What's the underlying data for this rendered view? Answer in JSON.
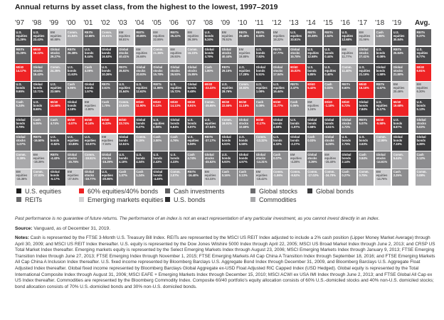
{
  "title": "Annual returns by asset class, from the highest to the lowest, 1997–2019",
  "avg_label": "Avg.",
  "chart_data": {
    "type": "table",
    "title": "Annual returns by asset class, from the highest to the lowest, 1997–2019",
    "years": [
      "'97",
      "'98",
      "'99",
      "'00",
      "'01",
      "'02",
      "'03",
      "'04",
      "'05",
      "'06",
      "'07",
      "'08",
      "'09",
      "'10",
      "'11",
      "'12",
      "'13",
      "'14",
      "'15",
      "'16",
      "'17",
      "'18",
      "'19"
    ],
    "columns": [
      [
        [
          "us_eq",
          "31.29%"
        ],
        [
          "reits",
          "31.29%"
        ],
        [
          "sixty40",
          "14.17%"
        ],
        [
          "us_bonds",
          "9.65%"
        ],
        [
          "cash",
          "5.24%"
        ],
        [
          "gl_bonds",
          "3.79%"
        ],
        [
          "gl_stocks",
          "-1.07%"
        ],
        [
          "comm",
          "-3.39%"
        ],
        [
          "em_eq",
          "-16.36%"
        ]
      ],
      [
        [
          "us_eq",
          "23.43%"
        ],
        [
          "sixty40",
          "16.22%"
        ],
        [
          "gl_stocks",
          "15.43%"
        ],
        [
          "gl_bonds",
          "13.71%"
        ],
        [
          "us_bonds",
          "8.69%"
        ],
        [
          "cash",
          "5.05%"
        ],
        [
          "reits",
          "-16.50%"
        ],
        [
          "em_eq",
          "-18.39%"
        ],
        [
          "comm",
          "-27.03%"
        ]
      ],
      [
        [
          "em_eq",
          "60.88%"
        ],
        [
          "gl_stocks",
          "29.27%"
        ],
        [
          "comm",
          "24.35%"
        ],
        [
          "us_eq",
          "23.56%"
        ],
        [
          "sixty40",
          "14.66%"
        ],
        [
          "cash",
          "4.74%"
        ],
        [
          "us_bonds",
          "-0.82%"
        ],
        [
          "reits",
          "-4.43%"
        ],
        [
          "gl_bonds",
          "-5.17%"
        ]
      ],
      [
        [
          "comm",
          "31.84%"
        ],
        [
          "reits",
          "26.38%"
        ],
        [
          "us_bonds",
          "11.63%"
        ],
        [
          "cash",
          "5.96%"
        ],
        [
          "gl_bonds",
          "3.18%"
        ],
        [
          "sixty40",
          "-4.07%"
        ],
        [
          "us_eq",
          "-10.89%"
        ],
        [
          "gl_stocks",
          "-15.76%"
        ],
        [
          "em_eq",
          "-27.94%"
        ]
      ],
      [
        [
          "reits",
          "12.65%"
        ],
        [
          "us_bonds",
          "8.44%"
        ],
        [
          "cash",
          "4.09%"
        ],
        [
          "gl_bonds",
          "1.57%"
        ],
        [
          "em_eq",
          "-2.80%"
        ],
        [
          "sixty40",
          "-6.14%"
        ],
        [
          "us_eq",
          "-10.97%"
        ],
        [
          "comm",
          "-19.51%"
        ],
        [
          "gl_stocks",
          "-19.77%"
        ]
      ],
      [
        [
          "comm",
          "25.91%"
        ],
        [
          "gl_bonds",
          "16.53%"
        ],
        [
          "us_bonds",
          "10.26%"
        ],
        [
          "reits",
          "3.61%"
        ],
        [
          "cash",
          "1.70%"
        ],
        [
          "sixty40",
          "-6.33%"
        ],
        [
          "em_eq",
          "-7.04%"
        ],
        [
          "gl_stocks",
          "-15.29%"
        ],
        [
          "us_eq",
          "-20.86%"
        ]
      ],
      [
        [
          "em_eq",
          "58.81%"
        ],
        [
          "gl_stocks",
          "40.41%"
        ],
        [
          "reits",
          "35.92%"
        ],
        [
          "us_eq",
          "31.64%"
        ],
        [
          "comm",
          "23.93%"
        ],
        [
          "sixty40",
          "23.74%"
        ],
        [
          "gl_bonds",
          "12.51%"
        ],
        [
          "us_bonds",
          "4.10%"
        ],
        [
          "cash",
          "1.07%"
        ]
      ],
      [
        [
          "reits",
          "30.85%"
        ],
        [
          "em_eq",
          "26.68%"
        ],
        [
          "gl_stocks",
          "20.93%"
        ],
        [
          "us_eq",
          "12.62%"
        ],
        [
          "sixty40",
          "11.90%"
        ],
        [
          "gl_bonds",
          "9.27%"
        ],
        [
          "comm",
          "9.15%"
        ],
        [
          "us_bonds",
          "4.34%"
        ],
        [
          "cash",
          "1.24%"
        ]
      ],
      [
        [
          "em_eq",
          "32.85%"
        ],
        [
          "comm",
          "21.36%"
        ],
        [
          "gl_stocks",
          "15.78%"
        ],
        [
          "reits",
          "11.96%"
        ],
        [
          "sixty40",
          "6.12%"
        ],
        [
          "us_eq",
          "6.08%"
        ],
        [
          "cash",
          "3.00%"
        ],
        [
          "us_bonds",
          "2.43%"
        ],
        [
          "gl_bonds",
          "-4.49%"
        ]
      ],
      [
        [
          "reits",
          "35.22%"
        ],
        [
          "em_eq",
          "29.93%"
        ],
        [
          "gl_stocks",
          "26.93%"
        ],
        [
          "us_eq",
          "15.72%"
        ],
        [
          "sixty40",
          "14.13%"
        ],
        [
          "gl_bonds",
          "6.64%"
        ],
        [
          "cash",
          "4.76%"
        ],
        [
          "us_bonds",
          "4.33%"
        ],
        [
          "comm",
          "2.07%"
        ]
      ],
      [
        [
          "em_eq",
          "39.39%"
        ],
        [
          "comm",
          "16.23%"
        ],
        [
          "gl_stocks",
          "15.85%"
        ],
        [
          "gl_bonds",
          "9.48%"
        ],
        [
          "sixty40",
          "8.91%"
        ],
        [
          "us_bonds",
          "6.97%"
        ],
        [
          "us_eq",
          "5.59%"
        ],
        [
          "cash",
          "4.74%"
        ],
        [
          "reits",
          "-16.40%"
        ]
      ],
      [
        [
          "us_bonds",
          "5.24%"
        ],
        [
          "gl_bonds",
          "4.79%"
        ],
        [
          "cash",
          "1.80%"
        ],
        [
          "sixty40",
          "-22.22%"
        ],
        [
          "comm",
          "-35.65%"
        ],
        [
          "us_eq",
          "-37.04%"
        ],
        [
          "reits",
          "-37.17%"
        ],
        [
          "gl_stocks",
          "-45.52%"
        ],
        [
          "em_eq",
          "-53.33%"
        ]
      ],
      [
        [
          "em_eq",
          "78.51%"
        ],
        [
          "gl_stocks",
          "40.44%"
        ],
        [
          "reits",
          "29.15%"
        ],
        [
          "us_eq",
          "28.76%"
        ],
        [
          "sixty40",
          "22.55%"
        ],
        [
          "comm",
          "18.91%"
        ],
        [
          "gl_bonds",
          "6.93%"
        ],
        [
          "us_bonds",
          "5.93%"
        ],
        [
          "cash",
          "0.16%"
        ]
      ],
      [
        [
          "reits",
          "28.48%"
        ],
        [
          "em_eq",
          "18.88%"
        ],
        [
          "us_eq",
          "17.28%"
        ],
        [
          "comm",
          "16.83%"
        ],
        [
          "sixty40",
          "11.18%"
        ],
        [
          "gl_stocks",
          "10.69%"
        ],
        [
          "us_bonds",
          "6.58%"
        ],
        [
          "gl_bonds",
          "4.57%"
        ],
        [
          "cash",
          "0.13%"
        ]
      ],
      [
        [
          "reits",
          "8.69%"
        ],
        [
          "us_bonds",
          "7.92%"
        ],
        [
          "gl_bonds",
          "5.51%"
        ],
        [
          "us_eq",
          "1.08%"
        ],
        [
          "cash",
          "0.08%"
        ],
        [
          "sixty40",
          "-0.17%"
        ],
        [
          "comm",
          "-13.32%"
        ],
        [
          "gl_stocks",
          "-14.31%"
        ],
        [
          "em_eq",
          "-18.42%"
        ]
      ],
      [
        [
          "em_eq",
          "18.22%"
        ],
        [
          "reits",
          "17.77%"
        ],
        [
          "gl_stocks",
          "17.04%"
        ],
        [
          "us_eq",
          "16.44%"
        ],
        [
          "sixty40",
          "11.77%"
        ],
        [
          "gl_bonds",
          "4.59%"
        ],
        [
          "us_bonds",
          "4.32%"
        ],
        [
          "cash",
          "0.07%"
        ],
        [
          "comm",
          "-1.06%"
        ]
      ],
      [
        [
          "us_eq",
          "33.51%"
        ],
        [
          "gl_stocks",
          "15.78%"
        ],
        [
          "sixty40",
          "15.02%"
        ],
        [
          "reits",
          "2.47%"
        ],
        [
          "cash",
          "0.05%"
        ],
        [
          "us_bonds",
          "-1.97%"
        ],
        [
          "gl_bonds",
          "-2.27%"
        ],
        [
          "em_eq",
          "-4.28%"
        ],
        [
          "comm",
          "-9.52%"
        ]
      ],
      [
        [
          "reits",
          "30.38%"
        ],
        [
          "us_eq",
          "12.58%"
        ],
        [
          "us_bonds",
          "5.85%"
        ],
        [
          "sixty40",
          "5.42%"
        ],
        [
          "em_eq",
          "1.24%"
        ],
        [
          "gl_bonds",
          "0.58%"
        ],
        [
          "cash",
          "0.03%"
        ],
        [
          "gl_stocks",
          "-3.39%"
        ],
        [
          "comm",
          "-17.02%"
        ]
      ],
      [
        [
          "reits",
          "2.52%"
        ],
        [
          "us_bonds",
          "0.44%"
        ],
        [
          "us_eq",
          "0.40%"
        ],
        [
          "cash",
          "0.03%"
        ],
        [
          "sixty40",
          "-1.18%"
        ],
        [
          "gl_bonds",
          "-3.51%"
        ],
        [
          "gl_stocks",
          "-4.29%"
        ],
        [
          "em_eq",
          "-15.40%"
        ],
        [
          "comm",
          "-24.70%"
        ]
      ],
      [
        [
          "us_eq",
          "12.68%"
        ],
        [
          "em_eq",
          "11.77%"
        ],
        [
          "comm",
          "11.40%"
        ],
        [
          "reits",
          "8.60%"
        ],
        [
          "sixty40",
          "6.72%"
        ],
        [
          "gl_stocks",
          "4.72%"
        ],
        [
          "us_bonds",
          "2.75%"
        ],
        [
          "gl_bonds",
          "2.14%"
        ],
        [
          "cash",
          "0.27%"
        ]
      ],
      [
        [
          "em_eq",
          "31.06%"
        ],
        [
          "gl_stocks",
          "27.41%"
        ],
        [
          "us_eq",
          "21.19%"
        ],
        [
          "sixty40",
          "16.16%"
        ],
        [
          "gl_bonds",
          "7.84%"
        ],
        [
          "reits",
          "5.07%"
        ],
        [
          "us_bonds",
          "3.63%"
        ],
        [
          "cash",
          "0.84%"
        ],
        [
          "comm",
          "0.75%"
        ]
      ],
      [
        [
          "cash",
          "1.86%"
        ],
        [
          "us_bonds",
          "-0.08%"
        ],
        [
          "gl_bonds",
          "-1.58%"
        ],
        [
          "reits",
          "-4.57%"
        ],
        [
          "us_eq",
          "-5.17%"
        ],
        [
          "sixty40",
          "-5.58%"
        ],
        [
          "comm",
          "-12.99%"
        ],
        [
          "gl_stocks",
          "-14.61%"
        ],
        [
          "em_eq",
          "-14.76%"
        ]
      ],
      [
        [
          "us_eq",
          "30.84%"
        ],
        [
          "reits",
          "25.84%"
        ],
        [
          "gl_stocks",
          "21.80%"
        ],
        [
          "em_eq",
          "20.46%"
        ],
        [
          "sixty40",
          "19.68%"
        ],
        [
          "us_bonds",
          "8.87%"
        ],
        [
          "gl_bonds",
          "7.19%"
        ],
        [
          "comm",
          "5.44%"
        ],
        [
          "cash",
          "2.25%"
        ]
      ]
    ],
    "average": [
      [
        "reits",
        "9.37%"
      ],
      [
        "us_eq",
        "8.77%"
      ],
      [
        "sixty40",
        "6.91%"
      ],
      [
        "em_eq",
        "6.30%"
      ],
      [
        "us_bonds",
        "5.13%"
      ],
      [
        "gl_stocks",
        "5.02%"
      ],
      [
        "gl_bonds",
        "4.36%"
      ],
      [
        "cash",
        "2.12%"
      ],
      [
        "comm",
        "0.08%"
      ]
    ],
    "asset_classes": {
      "us_eq": {
        "label": "U.S. equities",
        "cell_lines": [
          "U.S.",
          "equities"
        ],
        "color": "#4a4a4c"
      },
      "sixty40": {
        "label": "60% equities/40% bonds",
        "cell_lines": [
          "60/40"
        ],
        "color": "#ee2224"
      },
      "cash": {
        "label": "Cash investments",
        "cell_lines": [
          "Cash"
        ],
        "color": "#8d8d8f"
      },
      "gl_stocks": {
        "label": "Global stocks",
        "cell_lines": [
          "Global",
          "stocks"
        ],
        "color": "#747476"
      },
      "gl_bonds": {
        "label": "Global bonds",
        "cell_lines": [
          "Global",
          "bonds"
        ],
        "color": "#39393b"
      },
      "reits": {
        "label": "REITs",
        "cell_lines": [
          "REITs"
        ],
        "color": "#626264"
      },
      "em_eq": {
        "label": "Emerging markets equities",
        "cell_lines": [
          "EM",
          "equities"
        ],
        "color": "#cfcfd1"
      },
      "us_bonds": {
        "label": "U.S. bonds",
        "cell_lines": [
          "U.S.",
          "bonds"
        ],
        "color": "#444446"
      },
      "comm": {
        "label": "Commodities",
        "cell_lines": [
          "Comm."
        ],
        "color": "#a9a9ab"
      }
    },
    "legend_order": [
      [
        "us_eq",
        "sixty40",
        "cash",
        "gl_stocks",
        "gl_bonds"
      ],
      [
        "reits",
        "em_eq",
        "us_bonds",
        "comm"
      ]
    ],
    "legend_swatch_colors": {
      "us_eq": "#1e1e1e",
      "sixty40": "#ee2224",
      "cash": "#5e5e60",
      "gl_stocks": "#6c6c6e",
      "gl_bonds": "#3a3a3c",
      "reits": "#6a6a6c",
      "em_eq": "#d2d2d4",
      "us_bonds": "#2e2e30",
      "comm": "#a9a9ab"
    }
  },
  "disclaimer": "Past performance is no guarantee of future returns. The performance of an index is not an exact representation of any particular investment, as you cannot invest directly in an index.",
  "source_label": "Source:",
  "source_text": " Vanguard, as of December 31, 2019.",
  "notes_label": "Notes:",
  "notes_text": " Cash is represented by the FTSE 3-Month U.S. Treasury Bill Index. REITs are represented by the MSCI US REIT Index adjusted to include a 2% cash position (Lipper Money Market Average) through April 30, 2009; and MSCI US REIT Index thereafter. U.S. equity is represented by the Dow Jones Wilshire 5000 Index through April 22, 2005; MSCI US Broad Market Index through June 2, 2013; and CRSP US Total Market Index thereafter. Emerging markets equity is represented by the Select Emerging Markets Index through August 23, 2006; MSCI Emerging Markets Index through January 9, 2013; FTSE Emerging Transition Index through June 27, 2013; FTSE Emerging Index through November 1, 2015; FTSE Emerging Markets All Cap China A Transition Index through September 18, 2016; and FTSE Emerging Markets All Cap China A Inclusion Index thereafter. U.S. fixed income represented by Bloomberg Barclays U.S. Aggregate Bond Index through December 31, 2009, and Bloomberg Barclays U.S. Aggregate Float Adjusted Index thereafter. Global fixed income represented by Bloomberg Barclays Global Aggregate ex-USD Float Adjusted RIC Capped Index (USD Hedged). Global equity is represented by the Total International Composite Index through August 31, 2006; MSCI EAFE + Emerging Markets Index through December 15, 2010; MSCI ACWI ex USA IMI Index through June 2, 2013; and FTSE Global All Cap ex US Index thereafter. Commodities are represented by the Bloomberg Commodity Index. Composite 60/40 portfolio's equity allocation consists of 60% U.S.-domiciled stocks and 40% non-U.S. domiciled stocks; bond allocation consists of 70% U.S.-domiciled bonds and 30% non-U.S. domiciled bonds."
}
